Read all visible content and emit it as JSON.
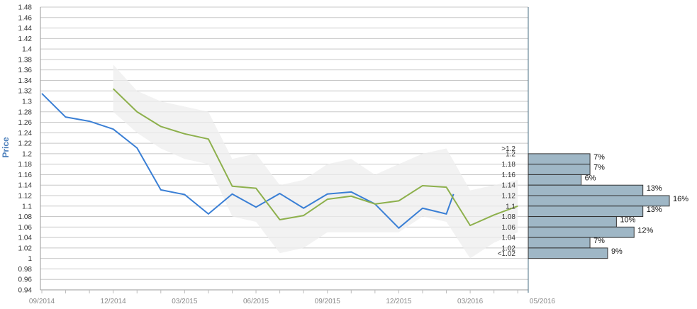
{
  "chart_data": {
    "type": "line",
    "ylabel": "Price",
    "xlabel": "",
    "ylim": [
      0.94,
      1.48
    ],
    "yticks": [
      "1.48",
      "1.46",
      "1.44",
      "1.42",
      "1.4",
      "1.38",
      "1.36",
      "1.34",
      "1.32",
      "1.3",
      "1.28",
      "1.26",
      "1.24",
      "1.22",
      "1.2",
      "1.18",
      "1.16",
      "1.14",
      "1.12",
      "1.1",
      "1.08",
      "1.06",
      "1.04",
      "1.02",
      "1",
      "0.98",
      "0.96",
      "0.94"
    ],
    "x_labels": [
      {
        "label": "09/2014",
        "month": 0
      },
      {
        "label": "12/2014",
        "month": 3
      },
      {
        "label": "03/2015",
        "month": 6
      },
      {
        "label": "06/2015",
        "month": 9
      },
      {
        "label": "09/2015",
        "month": 12
      },
      {
        "label": "12/2015",
        "month": 15
      },
      {
        "label": "03/2016",
        "month": 18
      },
      {
        "label": "05/2016",
        "month": 20
      }
    ],
    "grid": true,
    "colors": {
      "actual": "#3a7fd5",
      "forecast": "#8db04c",
      "band": "#eeeeee",
      "hist_bar": "#9fb7c6",
      "hist_edge": "#333333"
    },
    "series": [
      {
        "id": "actual",
        "x": [
          0,
          1,
          2,
          3,
          4,
          5,
          6,
          7,
          8,
          9,
          10,
          11,
          12,
          13,
          14,
          15,
          16,
          17,
          17.3
        ],
        "values": [
          1.315,
          1.27,
          1.262,
          1.247,
          1.211,
          1.131,
          1.122,
          1.085,
          1.123,
          1.098,
          1.124,
          1.096,
          1.123,
          1.127,
          1.104,
          1.058,
          1.096,
          1.085,
          1.123
        ]
      },
      {
        "id": "forecast",
        "x": [
          3,
          4,
          5,
          6,
          7,
          8,
          9,
          10,
          11,
          12,
          13,
          14,
          15,
          16,
          17,
          18,
          19,
          20
        ],
        "values": [
          1.324,
          1.28,
          1.252,
          1.238,
          1.228,
          1.138,
          1.134,
          1.074,
          1.082,
          1.113,
          1.119,
          1.104,
          1.11,
          1.139,
          1.136,
          1.063,
          1.083,
          1.1
        ],
        "band_upper": [
          1.37,
          1.32,
          1.3,
          1.29,
          1.28,
          1.19,
          1.2,
          1.14,
          1.15,
          1.18,
          1.19,
          1.16,
          1.18,
          1.2,
          1.21,
          1.13,
          1.14,
          1.15
        ],
        "band_lower": [
          1.28,
          1.24,
          1.21,
          1.19,
          1.18,
          1.08,
          1.07,
          1.01,
          1.02,
          1.05,
          1.05,
          1.05,
          1.05,
          1.08,
          1.07,
          1.0,
          1.03,
          1.05
        ]
      }
    ],
    "histogram": {
      "labels": [
        ">1.2",
        "1.2",
        "1.18",
        "1.16",
        "1.14",
        "1.12",
        "1.1",
        "1.08",
        "1.06",
        "1.04",
        "1.02",
        "<1.02"
      ],
      "bars": [
        {
          "low": 1.18,
          "high": 1.2,
          "percent": 7,
          "label": "7%"
        },
        {
          "low": 1.16,
          "high": 1.18,
          "percent": 7,
          "label": "7%"
        },
        {
          "low": 1.14,
          "high": 1.16,
          "percent": 6,
          "label": "6%"
        },
        {
          "low": 1.12,
          "high": 1.14,
          "percent": 13,
          "label": "13%"
        },
        {
          "low": 1.1,
          "high": 1.12,
          "percent": 16,
          "label": "16%"
        },
        {
          "low": 1.08,
          "high": 1.1,
          "percent": 13,
          "label": "13%"
        },
        {
          "low": 1.06,
          "high": 1.08,
          "percent": 10,
          "label": "10%"
        },
        {
          "low": 1.04,
          "high": 1.06,
          "percent": 12,
          "label": "12%"
        },
        {
          "low": 1.02,
          "high": 1.04,
          "percent": 7,
          "label": "7%"
        },
        {
          "low": 1.0,
          "high": 1.02,
          "percent": 9,
          "label": "9%"
        }
      ]
    }
  }
}
